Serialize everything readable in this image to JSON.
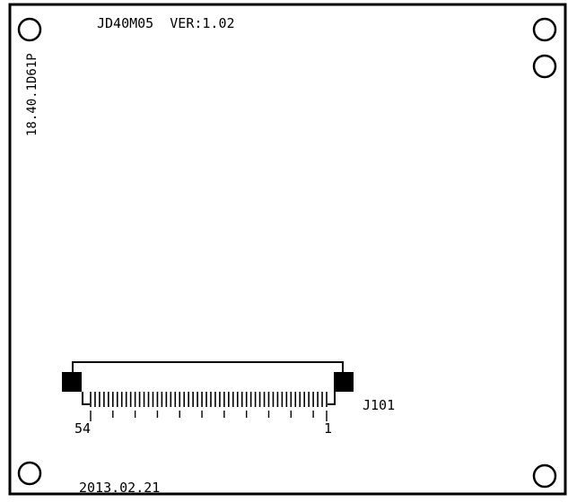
{
  "board": {
    "model_label": "JD40M05  VER:1.02",
    "part_number": "18.40.1D61P",
    "date_label": "2013.02.21"
  },
  "connector": {
    "designator": "J101",
    "pin_count": 54,
    "pin_first_label": "1",
    "pin_last_label": "54"
  },
  "colors": {
    "ink": "#000000",
    "background": "#ffffff"
  }
}
